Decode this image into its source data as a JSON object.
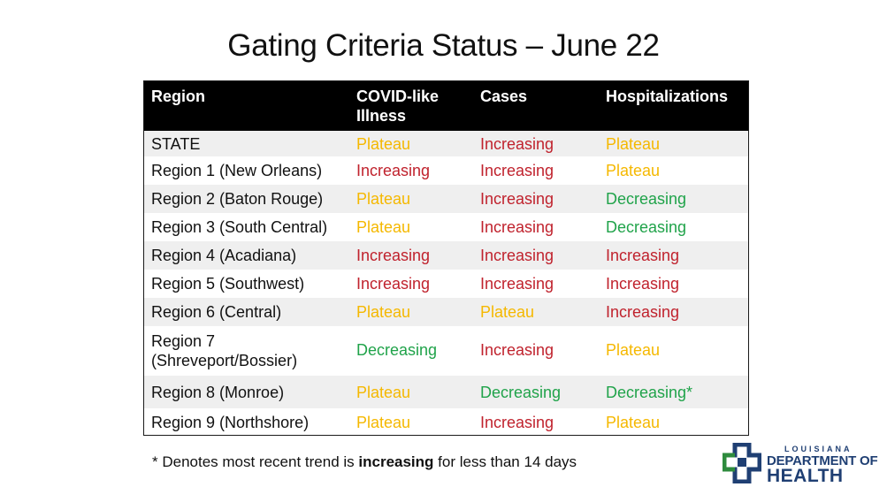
{
  "title": "Gating Criteria Status – June 22",
  "table": {
    "headers": [
      "Region",
      "COVID-like Illness",
      "Cases",
      "Hospitalizations"
    ],
    "rows": [
      {
        "region": "STATE",
        "covid": "Plateau",
        "cases": "Increasing",
        "hosp": "Plateau"
      },
      {
        "region": "Region 1 (New Orleans)",
        "covid": "Increasing",
        "cases": "Increasing",
        "hosp": "Plateau"
      },
      {
        "region": "Region 2 (Baton Rouge)",
        "covid": "Plateau",
        "cases": "Increasing",
        "hosp": "Decreasing"
      },
      {
        "region": "Region 3 (South Central)",
        "covid": "Plateau",
        "cases": "Increasing",
        "hosp": "Decreasing"
      },
      {
        "region": "Region 4 (Acadiana)",
        "covid": "Increasing",
        "cases": "Increasing",
        "hosp": "Increasing"
      },
      {
        "region": "Region 5 (Southwest)",
        "covid": "Increasing",
        "cases": "Increasing",
        "hosp": "Increasing"
      },
      {
        "region": "Region 6 (Central)",
        "covid": "Plateau",
        "cases": "Plateau",
        "hosp": "Increasing"
      },
      {
        "region": "Region 7 (Shreveport/Bossier)",
        "covid": "Decreasing",
        "cases": "Increasing",
        "hosp": "Plateau"
      },
      {
        "region": "Region 8 (Monroe)",
        "covid": "Plateau",
        "cases": "Decreasing",
        "hosp": "Decreasing*"
      },
      {
        "region": "Region 9 (Northshore)",
        "covid": "Plateau",
        "cases": "Increasing",
        "hosp": "Plateau"
      }
    ]
  },
  "footnote": {
    "prefix": "* Denotes most recent trend is ",
    "emphasis": "increasing",
    "suffix": " for less than 14 days"
  },
  "logo": {
    "line1": "LOUISIANA",
    "line2": "DEPARTMENT OF",
    "line3": "HEALTH"
  },
  "colors": {
    "Plateau": "#f5b800",
    "Increasing": "#c0222d",
    "Decreasing": "#20a34a",
    "header_bg": "#000000",
    "row_shade": "#efefef",
    "logo_blue": "#1f3f73",
    "logo_green": "#2e8b3d"
  }
}
